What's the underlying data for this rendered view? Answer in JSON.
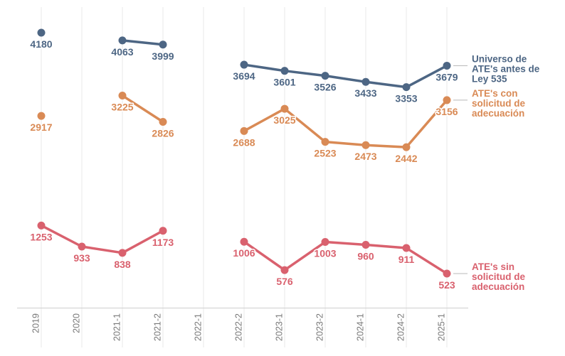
{
  "chart_data": {
    "type": "line",
    "title": "",
    "xlabel": "",
    "ylabel": "",
    "categories": [
      "2019",
      "2020",
      "2021-1",
      "2021-2",
      "2022-1",
      "2022-2",
      "2023-1",
      "2023-2",
      "2024-1",
      "2024-2",
      "2025-1"
    ],
    "series": [
      {
        "name": "Universo de ATE's antes de Ley 535",
        "label_lines": [
          "Universo de",
          "ATE's antes de",
          "Ley 535"
        ],
        "color": "#4d6684",
        "values": [
          4180,
          null,
          4063,
          3999,
          null,
          3694,
          3601,
          3526,
          3433,
          3353,
          3679
        ]
      },
      {
        "name": "ATE's con solicitud de adecuación",
        "label_lines": [
          "ATE's con",
          "solicitud de",
          "adecuación"
        ],
        "color": "#d98a55",
        "values": [
          2917,
          null,
          3225,
          2826,
          null,
          2688,
          3025,
          2523,
          2473,
          2442,
          3156
        ]
      },
      {
        "name": "ATE's sin solicitud de adecuación",
        "label_lines": [
          "ATE's sin",
          "solicitud de",
          "adecuación"
        ],
        "color": "#d9616e",
        "values": [
          1253,
          933,
          838,
          1173,
          null,
          1006,
          576,
          1003,
          960,
          911,
          523
        ]
      }
    ],
    "ylim": [
      0,
      4570
    ],
    "grid": "vertical-only",
    "legend_position": "right-of-line-ends",
    "data_labels": "below-points",
    "colors": {
      "gridline": "#e8e8e8",
      "axis_line": "#cfcfcf",
      "tick_label": "#787878",
      "connector": "#b9b9b9",
      "background": "#ffffff"
    }
  }
}
